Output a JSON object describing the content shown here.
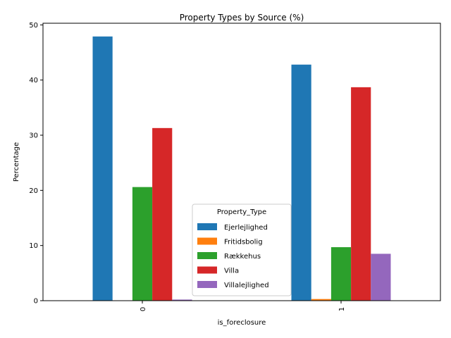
{
  "chart_data": {
    "type": "bar",
    "title": "Property Types by Source (%)",
    "xlabel": "is_foreclosure",
    "ylabel": "Percentage",
    "categories": [
      "0",
      "1"
    ],
    "ylim": [
      0,
      50.3
    ],
    "yticks": [
      0,
      10,
      20,
      30,
      40,
      50
    ],
    "legend_title": "Property_Type",
    "legend_position": "lower-center",
    "grid": false,
    "series": [
      {
        "name": "Ejerlejlighed",
        "color": "#1f77b4",
        "values": [
          47.9,
          42.8
        ]
      },
      {
        "name": "Fritidsbolig",
        "color": "#ff7f0e",
        "values": [
          0.0,
          0.3
        ]
      },
      {
        "name": "Rækkehus",
        "color": "#2ca02c",
        "values": [
          20.6,
          9.7
        ]
      },
      {
        "name": "Villa",
        "color": "#d62728",
        "values": [
          31.3,
          38.7
        ]
      },
      {
        "name": "Villalejlighed",
        "color": "#9467bd",
        "values": [
          0.2,
          8.5
        ]
      }
    ]
  }
}
